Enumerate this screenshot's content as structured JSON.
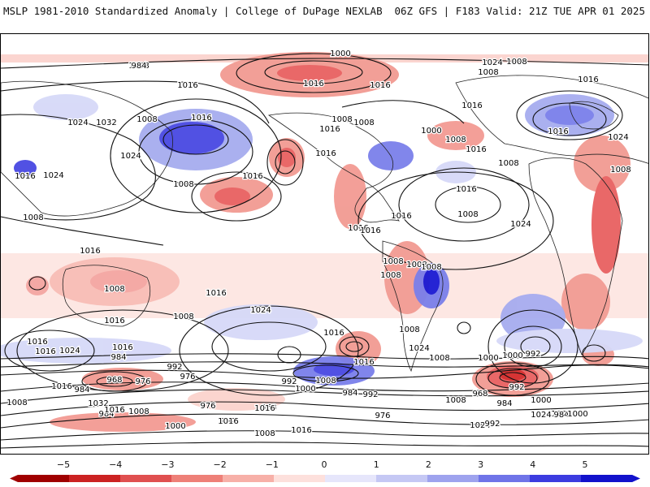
{
  "header": {
    "left_title": "MSLP 1981-2010 Standardized Anomaly | College of DuPage NEXLAB",
    "right_title": "06Z GFS | F183 Valid: 21Z TUE APR 01 2025"
  },
  "map": {
    "contour_labels": [
      "1000",
      "1008",
      "1016",
      "1024",
      "1032",
      "1008",
      "1016",
      "1024",
      "1016",
      "1008",
      "1016",
      "1024",
      "1016",
      "1008",
      "1016",
      "1008",
      "1016",
      "1016",
      "1024",
      "1008",
      "1016",
      "1008",
      "1016",
      "1000",
      "1008",
      "1016",
      "1008",
      "1016",
      "1024",
      "1008",
      "1016",
      "1024",
      "1008",
      "1016",
      "1008",
      "1016",
      "1008",
      "1016",
      "1008",
      "1008",
      "1016",
      "1008",
      "1016",
      "1024",
      "1008",
      "1016",
      "1016",
      "1008",
      "1016",
      "1024",
      "1008",
      "1016",
      "1016",
      "1024",
      "1016",
      "1008",
      "1000",
      "984",
      "992",
      "976",
      "1000",
      "992",
      "968",
      "976",
      "984",
      "992",
      "1000",
      "984",
      "992",
      "984",
      "1000",
      "976",
      "992",
      "1032",
      "984",
      "968",
      "992",
      "1000",
      "1008",
      "1016",
      "1008",
      "1016",
      "1000",
      "1008",
      "1016",
      "1024",
      "984",
      "992",
      "968",
      "976",
      "1000",
      "1016",
      "1024",
      "992",
      "1008",
      "1016",
      "1008",
      "1000",
      "984"
    ],
    "anomaly_colors": {
      "neg5": "#a00000",
      "neg4": "#d42a2a",
      "neg3": "#e86060",
      "neg2": "#f29a92",
      "neg1": "#fbd3cd",
      "pos1": "#d6d9f8",
      "pos2": "#a6acef",
      "pos3": "#7a7fea",
      "pos4": "#4848e2",
      "pos5": "#1a1ad4"
    }
  },
  "colorbar": {
    "ticks": [
      "−5",
      "−4",
      "−3",
      "−2",
      "−1",
      "0",
      "1",
      "2",
      "3",
      "4",
      "5"
    ],
    "colors": [
      "#a00000",
      "#cc2222",
      "#e05050",
      "#ee8078",
      "#f7b0a8",
      "#fde0dc",
      "#e6e6fb",
      "#c5c8f4",
      "#9ea3ee",
      "#6f74e8",
      "#3c3ce0",
      "#1212cc"
    ]
  }
}
